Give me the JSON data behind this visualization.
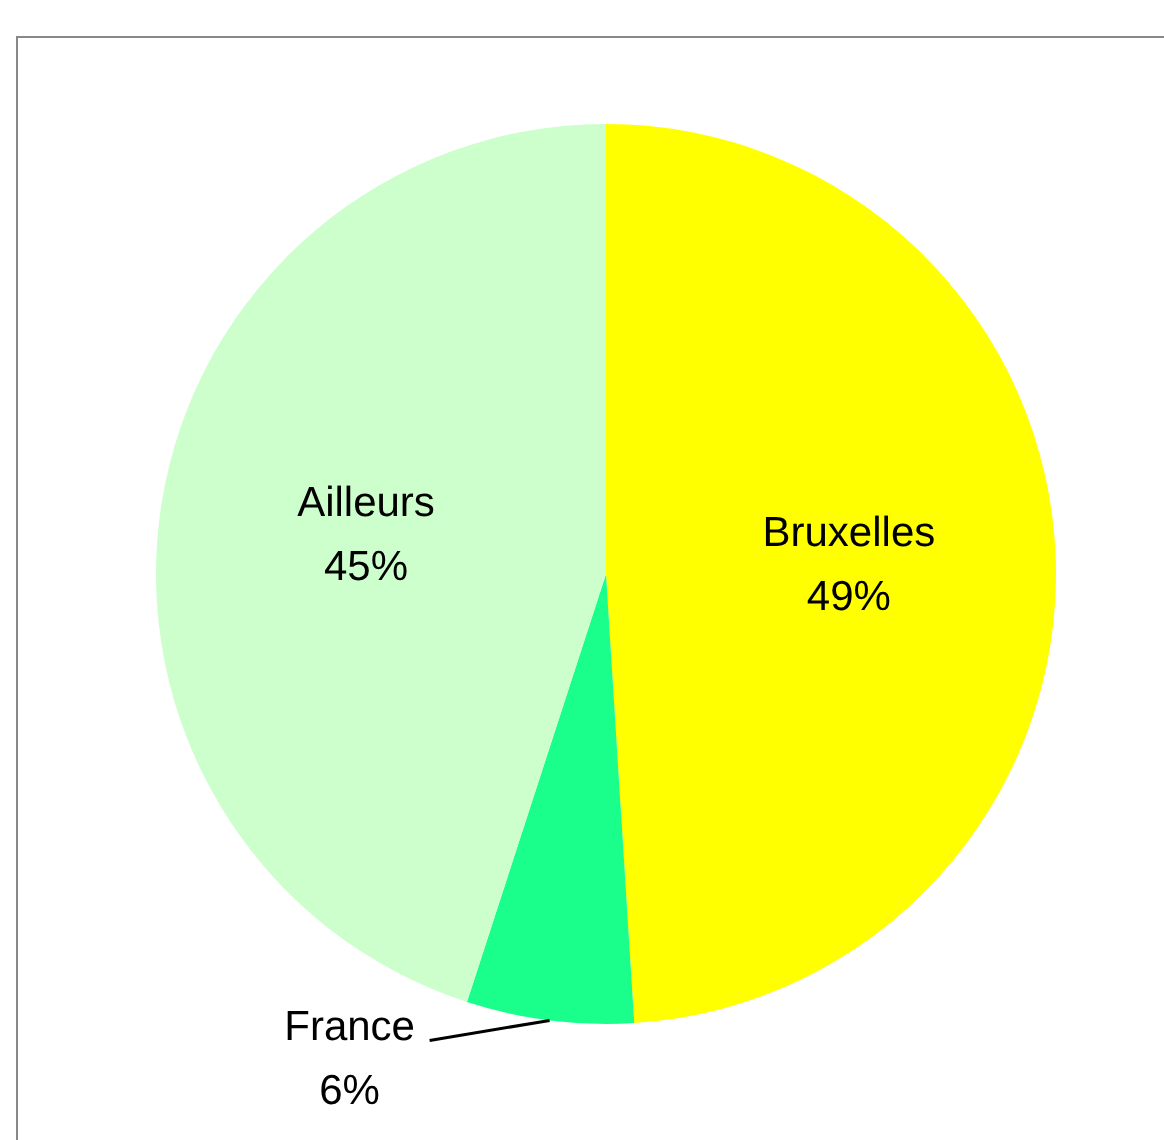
{
  "chart_data": {
    "type": "pie",
    "categories": [
      "Bruxelles",
      "France",
      "Ailleurs"
    ],
    "values": [
      49,
      6,
      45
    ],
    "colors": [
      "#ffff00",
      "#1aff8c",
      "#ccffcc"
    ],
    "value_labels": [
      "49%",
      "6%",
      "45%"
    ],
    "legend": false
  }
}
